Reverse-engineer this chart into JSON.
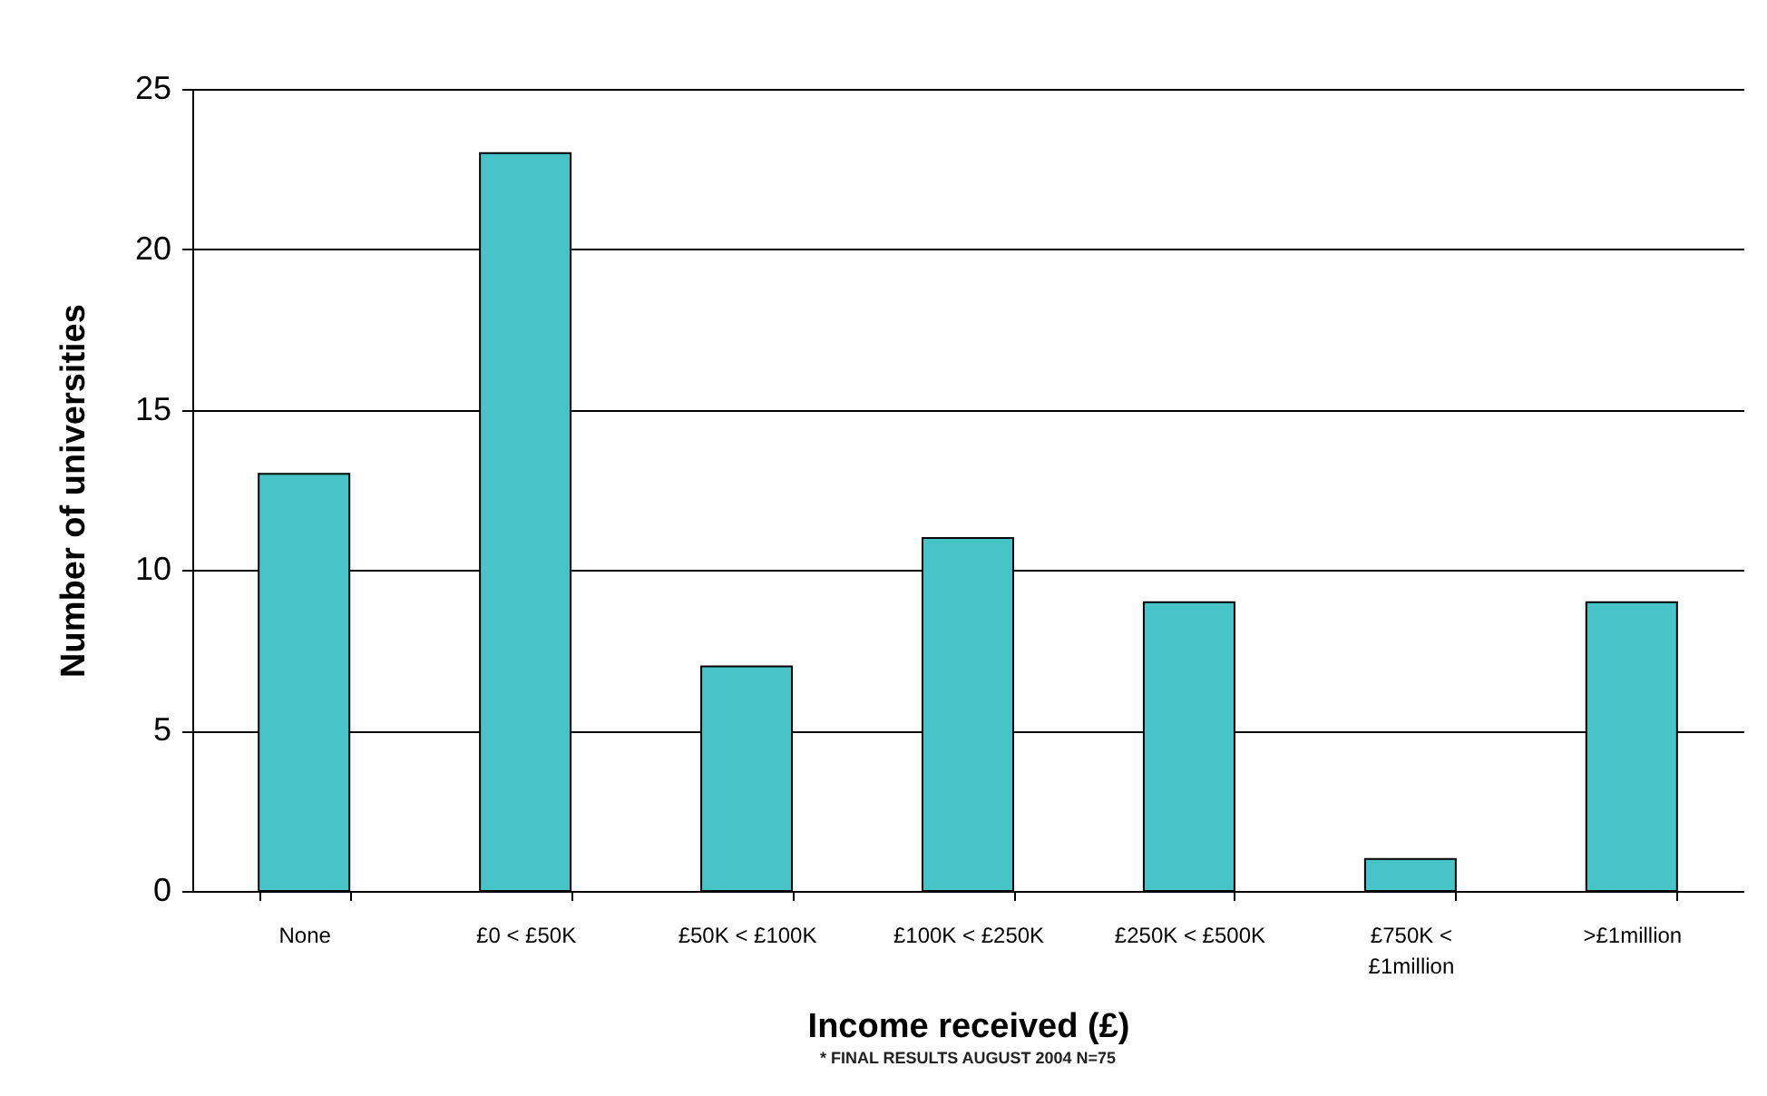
{
  "chart_data": {
    "type": "bar",
    "xlabel": "Income received (£)",
    "ylabel": "Number of universities",
    "categories": [
      "None",
      "£0 < £50K",
      "£50K < £100K",
      "£100K < £250K",
      "£250K < £500K",
      "£750K < £1million",
      ">£1million"
    ],
    "values": [
      13,
      23,
      7,
      11,
      9,
      1,
      9
    ],
    "color": "#48c4c8",
    "ylim": [
      0,
      25
    ],
    "yticks": [
      0,
      5,
      10,
      15,
      20,
      25
    ],
    "grid": "y",
    "annotations": [
      "* FINAL RESULTS AUGUST 2004 N=75"
    ]
  }
}
